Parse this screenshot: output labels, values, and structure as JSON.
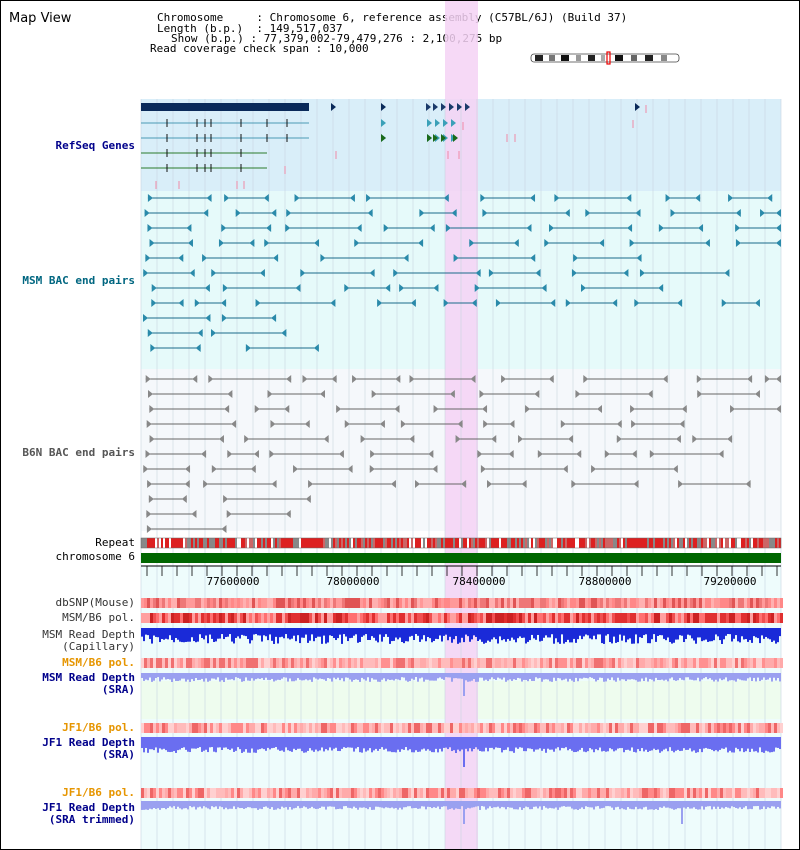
{
  "title": "Map View",
  "info": {
    "chromosome_label": "Chromosome",
    "chromosome_value": "Chromosome 6, reference assembly (C57BL/6J) (Build 37)",
    "length_label": "Length (b.p.)",
    "length_value": "149,517,037",
    "show_label": "Show (b.p.)",
    "show_value": "77,379,002-79,479,276 : 2,100,275 bp",
    "coverage_label": "Read coverage check span",
    "coverage_value": "10,000"
  },
  "tracks": {
    "refseq": "RefSeq Genes",
    "msm_bac": "MSM BAC end pairs",
    "b6n_bac": "B6N BAC end pairs",
    "repeat": "Repeat",
    "chromosome": "chromosome 6",
    "dbsnp": "dbSNP(Mouse)",
    "msm_b6_pol": "MSM/B6 pol.",
    "msm_depth_cap_1": "MSM Read Depth",
    "msm_depth_cap_2": "(Capillary)",
    "msm_b6_pol_sra": "MSM/B6 pol.",
    "msm_depth_sra_1": "MSM Read Depth",
    "msm_depth_sra_2": "(SRA)",
    "jf1_pol_1": "JF1/B6 pol.",
    "jf1_depth_1": "JF1 Read Depth",
    "jf1_depth_1b": "(SRA)",
    "jf1_pol_2": "JF1/B6 pol.",
    "jf1_depth_2": "JF1 Read Depth",
    "jf1_depth_2b": "(SRA trimmed)"
  },
  "ruler": {
    "ticks": [
      "77600000",
      "78000000",
      "78400000",
      "78800000",
      "79200000"
    ]
  },
  "colors": {
    "refseq_bg": "#d9eef9",
    "msm_bg": "#e6fafa",
    "b6n_bg": "#f5f8fb",
    "highlight": "#f5d2f5",
    "chromosome": "#006600",
    "label_blue": "#00008b",
    "label_teal": "#006680",
    "label_orange": "#e69500"
  }
}
